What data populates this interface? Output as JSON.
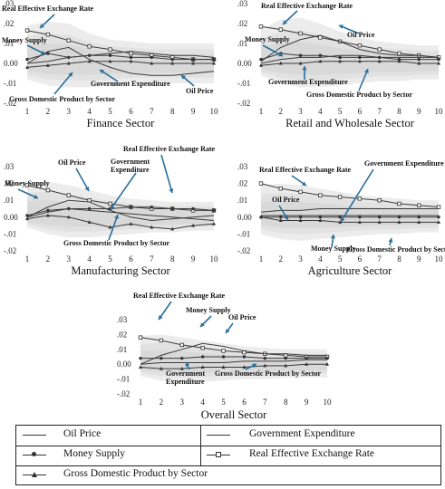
{
  "chart_data": [
    {
      "type": "line",
      "title": "Finance Sector",
      "x": [
        1,
        2,
        3,
        4,
        5,
        6,
        7,
        8,
        9,
        10
      ],
      "yticks": [
        ".03",
        ".02",
        ".01",
        "0.00",
        "-.01",
        "-.02"
      ],
      "ylim": [
        -0.02,
        0.03
      ],
      "band": {
        "upper": [
          0.019,
          0.021,
          0.02,
          0.015,
          0.012,
          0.011,
          0.01,
          0.01,
          0.01,
          0.01
        ],
        "lower": [
          -0.008,
          -0.011,
          -0.012,
          -0.012,
          -0.011,
          -0.01,
          -0.01,
          -0.01,
          -0.01,
          -0.01
        ]
      },
      "series": [
        {
          "name": "Real Effective Exchange Rate",
          "marker": "square",
          "values": [
            0.0165,
            0.0145,
            0.0115,
            0.0085,
            0.007,
            0.005,
            0.004,
            0.003,
            0.002,
            0.002
          ]
        },
        {
          "name": "Oil Price",
          "marker": "none",
          "values": [
            0.0,
            0.006,
            0.008,
            0.002,
            -0.002,
            -0.005,
            -0.006,
            -0.006,
            -0.005,
            -0.004
          ]
        },
        {
          "name": "Money Supply",
          "marker": "dot",
          "values": [
            0.002,
            0.005,
            0.003,
            0.004,
            0.004,
            0.003,
            0.003,
            0.002,
            0.002,
            0.002
          ]
        },
        {
          "name": "Government Expenditure",
          "marker": "none",
          "values": [
            0.0,
            0.001,
            0.003,
            0.004,
            0.005,
            0.006,
            0.005,
            0.004,
            0.004,
            0.003
          ]
        },
        {
          "name": "Gross Domestic Product by Sector",
          "marker": "triangle",
          "values": [
            -0.002,
            -0.001,
            0.0,
            0.001,
            0.001,
            0.001,
            0.0,
            0.0,
            0.0,
            0.0
          ]
        }
      ],
      "annotations": [
        {
          "text": "Real Effective Exchange Rate"
        },
        {
          "text": "Money Supply"
        },
        {
          "text": "Government Expenditure"
        },
        {
          "text": "Oil Price"
        },
        {
          "text": "Gross Domestic Product by Sector"
        }
      ]
    },
    {
      "type": "line",
      "title": "Retail and Wholesale Sector",
      "x": [
        1,
        2,
        3,
        4,
        5,
        6,
        7,
        8,
        9,
        10
      ],
      "yticks": [
        ".03",
        ".02",
        ".01",
        "0.00",
        "-.01",
        "-.02"
      ],
      "ylim": [
        -0.02,
        0.03
      ],
      "band": {
        "upper": [
          0.017,
          0.022,
          0.023,
          0.02,
          0.016,
          0.013,
          0.011,
          0.01,
          0.009,
          0.009
        ],
        "lower": [
          -0.006,
          -0.01,
          -0.012,
          -0.012,
          -0.011,
          -0.01,
          -0.009,
          -0.009,
          -0.008,
          -0.008
        ]
      },
      "series": [
        {
          "name": "Real Effective Exchange Rate",
          "marker": "square",
          "values": [
            0.0185,
            0.017,
            0.015,
            0.013,
            0.011,
            0.009,
            0.007,
            0.005,
            0.004,
            0.003
          ]
        },
        {
          "name": "Oil Price",
          "marker": "none",
          "values": [
            0.001,
            0.008,
            0.012,
            0.014,
            0.011,
            0.007,
            0.005,
            0.004,
            0.004,
            0.003
          ]
        },
        {
          "name": "Money Supply",
          "marker": "dot",
          "values": [
            0.002,
            0.005,
            0.004,
            0.004,
            0.003,
            0.003,
            0.003,
            0.002,
            0.002,
            0.002
          ]
        },
        {
          "name": "Government Expenditure",
          "marker": "none",
          "values": [
            0.0,
            0.002,
            0.003,
            0.003,
            0.004,
            0.004,
            0.003,
            0.003,
            0.003,
            0.003
          ]
        },
        {
          "name": "Gross Domestic Product by Sector",
          "marker": "triangle",
          "values": [
            -0.001,
            0.0,
            0.0,
            0.001,
            0.001,
            0.001,
            0.001,
            0.001,
            0.0,
            0.0
          ]
        }
      ],
      "annotations": [
        {
          "text": "Real Effective Exchange Rate"
        },
        {
          "text": "Oil Price"
        },
        {
          "text": "Money Supply"
        },
        {
          "text": "Government Expenditure"
        },
        {
          "text": "Gross Domestic Product by Sector"
        }
      ]
    },
    {
      "type": "line",
      "title": "Manufacturing Sector",
      "x": [
        1,
        2,
        3,
        4,
        5,
        6,
        7,
        8,
        9,
        10
      ],
      "yticks": [
        ".03",
        ".02",
        ".01",
        "0.00",
        "-.01",
        "-.02"
      ],
      "ylim": [
        -0.02,
        0.03
      ],
      "band": {
        "upper": [
          0.02,
          0.021,
          0.019,
          0.016,
          0.013,
          0.011,
          0.01,
          0.009,
          0.009,
          0.009
        ],
        "lower": [
          -0.006,
          -0.01,
          -0.012,
          -0.012,
          -0.011,
          -0.01,
          -0.009,
          -0.009,
          -0.008,
          -0.008
        ]
      },
      "series": [
        {
          "name": "Real Effective Exchange Rate",
          "marker": "square",
          "values": [
            0.019,
            0.016,
            0.013,
            0.01,
            0.008,
            0.006,
            0.005,
            0.005,
            0.004,
            0.004
          ]
        },
        {
          "name": "Oil Price",
          "marker": "none",
          "values": [
            0.0,
            0.006,
            0.01,
            0.009,
            0.004,
            0.0,
            -0.002,
            -0.001,
            0.0,
            0.001
          ]
        },
        {
          "name": "Money Supply",
          "marker": "dot",
          "values": [
            0.001,
            0.004,
            0.005,
            0.005,
            0.005,
            0.006,
            0.006,
            0.005,
            0.005,
            0.004
          ]
        },
        {
          "name": "Government Expenditure",
          "marker": "none",
          "values": [
            0.0,
            0.003,
            0.005,
            0.004,
            0.003,
            0.002,
            0.001,
            0.0,
            -0.001,
            -0.002
          ]
        },
        {
          "name": "Gross Domestic Product by Sector",
          "marker": "triangle",
          "values": [
            -0.001,
            0.001,
            0.0,
            -0.003,
            -0.006,
            -0.004,
            -0.006,
            -0.007,
            -0.005,
            -0.004
          ]
        }
      ],
      "annotations": [
        {
          "text": "Oil Price"
        },
        {
          "text": "Government Expenditure"
        },
        {
          "text": "Real Effective Exchange Rate"
        },
        {
          "text": "Money Supply"
        },
        {
          "text": "Gross Domestic Product by Sector"
        }
      ]
    },
    {
      "type": "line",
      "title": "Agriculture Sector",
      "x": [
        1,
        2,
        3,
        4,
        5,
        6,
        7,
        8,
        9,
        10
      ],
      "yticks": [
        ".03",
        ".02",
        ".01",
        "0.00",
        "-.01",
        "-.02"
      ],
      "ylim": [
        -0.02,
        0.03
      ],
      "band": {
        "upper": [
          0.019,
          0.02,
          0.019,
          0.017,
          0.015,
          0.013,
          0.012,
          0.011,
          0.01,
          0.01
        ],
        "lower": [
          -0.01,
          -0.013,
          -0.014,
          -0.013,
          -0.012,
          -0.011,
          -0.01,
          -0.01,
          -0.009,
          -0.009
        ]
      },
      "series": [
        {
          "name": "Real Effective Exchange Rate",
          "marker": "square",
          "values": [
            0.02,
            0.017,
            0.015,
            0.013,
            0.012,
            0.011,
            0.01,
            0.008,
            0.007,
            0.006
          ]
        },
        {
          "name": "Government Expenditure",
          "marker": "none",
          "values": [
            0.003,
            0.004,
            0.004,
            0.005,
            0.005,
            0.005,
            0.005,
            0.005,
            0.005,
            0.005
          ]
        },
        {
          "name": "Oil Price",
          "marker": "none",
          "values": [
            0.001,
            0.001,
            0.001,
            0.001,
            0.001,
            0.001,
            0.001,
            0.001,
            0.001,
            0.001
          ]
        },
        {
          "name": "Money Supply",
          "marker": "dot",
          "values": [
            0.0,
            0.0,
            0.0,
            0.0,
            0.0,
            0.0,
            0.0,
            0.0,
            0.0,
            0.0
          ]
        },
        {
          "name": "Gross Domestic Product by Sector",
          "marker": "triangle",
          "values": [
            0.0,
            -0.002,
            -0.002,
            -0.002,
            -0.003,
            -0.003,
            -0.003,
            -0.003,
            -0.003,
            -0.003
          ]
        }
      ],
      "annotations": [
        {
          "text": "Real Effective Exchange Rate"
        },
        {
          "text": "Government Expenditure"
        },
        {
          "text": "Oil Price"
        },
        {
          "text": "Money Supply"
        },
        {
          "text": "Gross Domestic Product by Sector"
        }
      ]
    },
    {
      "type": "line",
      "title": "Overall Sector",
      "x": [
        1,
        2,
        3,
        4,
        5,
        6,
        7,
        8,
        9,
        10
      ],
      "yticks": [
        ".03",
        ".02",
        ".01",
        "0.00",
        "-.01",
        "-.02"
      ],
      "ylim": [
        -0.02,
        0.03
      ],
      "band": {
        "upper": [
          0.019,
          0.02,
          0.018,
          0.016,
          0.014,
          0.012,
          0.011,
          0.01,
          0.01,
          0.01
        ],
        "lower": [
          -0.008,
          -0.011,
          -0.012,
          -0.012,
          -0.011,
          -0.01,
          -0.01,
          -0.009,
          -0.009,
          -0.009
        ]
      },
      "series": [
        {
          "name": "Real Effective Exchange Rate",
          "marker": "square",
          "values": [
            0.018,
            0.016,
            0.013,
            0.011,
            0.009,
            0.008,
            0.007,
            0.006,
            0.005,
            0.005
          ]
        },
        {
          "name": "Oil Price",
          "marker": "none",
          "values": [
            0.0,
            0.006,
            0.01,
            0.014,
            0.012,
            0.009,
            0.007,
            0.007,
            0.006,
            0.006
          ]
        },
        {
          "name": "Money Supply",
          "marker": "dot",
          "values": [
            0.004,
            0.004,
            0.004,
            0.005,
            0.005,
            0.005,
            0.004,
            0.004,
            0.004,
            0.004
          ]
        },
        {
          "name": "Government Expenditure",
          "marker": "none",
          "values": [
            0.0,
            0.001,
            0.001,
            0.001,
            0.001,
            0.002,
            0.002,
            0.002,
            0.003,
            0.003
          ]
        },
        {
          "name": "Gross Domestic Product by Sector",
          "marker": "triangle",
          "values": [
            -0.002,
            -0.003,
            -0.003,
            -0.002,
            -0.002,
            -0.002,
            -0.001,
            -0.001,
            0.0,
            0.0
          ]
        }
      ],
      "annotations": [
        {
          "text": "Real Effective Exchange Rate"
        },
        {
          "text": "Money Supply"
        },
        {
          "text": "Oil Price"
        },
        {
          "text": "Government Expenditure"
        },
        {
          "text": "Gross Domestic Product by Sector"
        }
      ]
    }
  ],
  "legend": {
    "items": [
      {
        "label": "Oil Price",
        "marker": "none"
      },
      {
        "label": "Government Expenditure",
        "marker": "none"
      },
      {
        "label": "Money Supply",
        "marker": "dot"
      },
      {
        "label": "Real Effective Exchange Rate",
        "marker": "square"
      },
      {
        "label": "Gross Domestic Product by Sector",
        "marker": "triangle"
      }
    ]
  }
}
